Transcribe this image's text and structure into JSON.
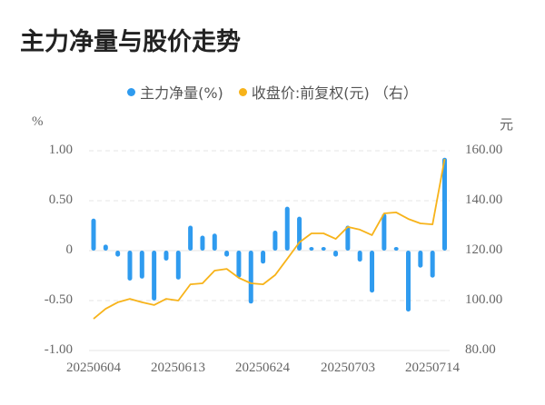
{
  "title": "主力净量与股价走势",
  "legend": [
    {
      "label": "主力净量(%)",
      "color": "#2f9bef"
    },
    {
      "label": "收盘价:前复权(元) （右）",
      "color": "#f7b31a"
    }
  ],
  "axes": {
    "left_unit": "%",
    "right_unit": "元",
    "left_ticks": [
      "1.00",
      "0.50",
      "0",
      "-0.50",
      "-1.00"
    ],
    "right_ticks": [
      "160.00",
      "140.00",
      "120.00",
      "100.00",
      "80.00"
    ],
    "x_ticks": [
      "20250604",
      "20250613",
      "20250624",
      "20250703",
      "20250714"
    ]
  },
  "chart_data": {
    "type": "bar+line",
    "title": "主力净量与股价走势",
    "xlabel": "",
    "ylabel": "%",
    "ylabel_right": "元",
    "ylim": [
      -1.0,
      1.0
    ],
    "ylim_right": [
      80,
      160
    ],
    "grid": true,
    "legend_position": "top",
    "x_tick_labels": [
      "20250604",
      "20250613",
      "20250624",
      "20250703",
      "20250714"
    ],
    "x_tick_indices": [
      0,
      7,
      14,
      21,
      29
    ],
    "series": [
      {
        "name": "主力净量(%)",
        "type": "bar",
        "axis": "left",
        "color": "#2f9bef",
        "values": [
          0.32,
          0.06,
          -0.06,
          -0.3,
          -0.28,
          -0.5,
          -0.1,
          -0.29,
          0.25,
          0.15,
          0.17,
          -0.06,
          -0.27,
          -0.53,
          -0.13,
          0.2,
          0.44,
          0.34,
          0.03,
          0.03,
          -0.06,
          0.25,
          -0.11,
          -0.42,
          0.37,
          0.0,
          -0.61,
          -0.17,
          -0.27,
          0.93
        ]
      },
      {
        "name": "收盘价:前复权(元)（右）",
        "type": "line",
        "axis": "right",
        "color": "#f7b31a",
        "values": [
          92.7,
          96.7,
          99.3,
          100.7,
          99.3,
          98.2,
          100.7,
          100.0,
          106.5,
          106.9,
          112.0,
          112.7,
          109.1,
          106.9,
          106.5,
          110.2,
          116.7,
          123.3,
          126.9,
          126.9,
          124.7,
          129.5,
          128.4,
          126.2,
          134.9,
          135.3,
          132.7,
          130.9,
          130.5,
          156.7
        ]
      }
    ]
  }
}
